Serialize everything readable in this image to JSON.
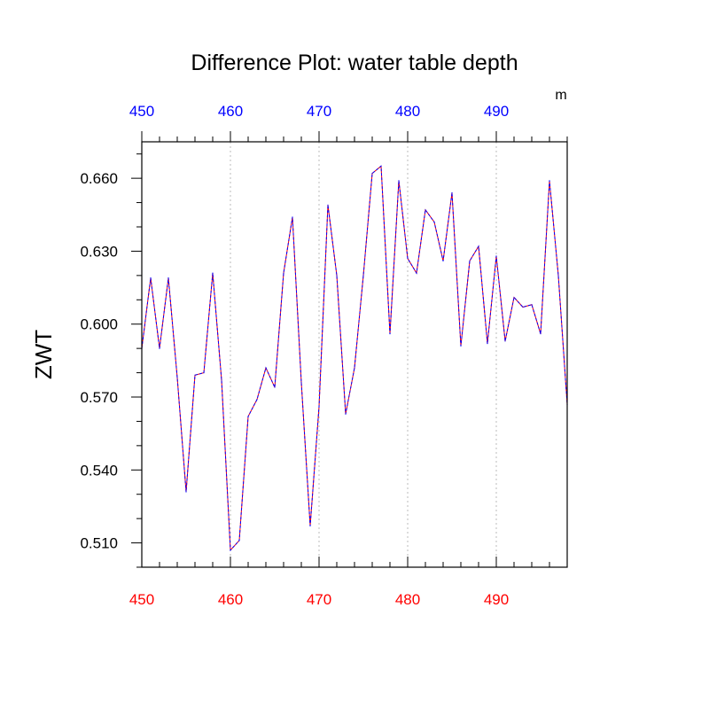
{
  "chart_data": {
    "type": "line",
    "title": "Difference Plot: water table depth",
    "ylabel": "ZWT",
    "top_axis_unit": "m",
    "xlim": [
      450,
      498
    ],
    "ylim": [
      0.5,
      0.675
    ],
    "x_ticks": [
      "450",
      "460",
      "470",
      "480",
      "490"
    ],
    "y_ticks": [
      "0.510",
      "0.540",
      "0.570",
      "0.600",
      "0.630",
      "0.660"
    ],
    "x_gridlines": true,
    "colors": {
      "bottom_axis_labels": "#ff0000",
      "top_axis_labels": "#0000ff",
      "series_solid": "#ff0000",
      "series_dashed": "#0000ff",
      "gridlines": "#bbbbbb"
    },
    "series": [
      {
        "x": [
          450,
          451,
          452,
          453,
          454,
          455,
          456,
          457,
          458,
          459,
          460,
          461,
          462,
          463,
          464,
          465,
          466,
          467,
          468,
          469,
          470,
          471,
          472,
          473,
          474,
          475,
          476,
          477,
          478,
          479,
          480,
          481,
          482,
          483,
          484,
          485,
          486,
          487,
          488,
          489,
          490,
          491,
          492,
          493,
          494,
          495,
          496,
          497,
          498
        ],
        "values": [
          0.59,
          0.619,
          0.59,
          0.619,
          0.578,
          0.531,
          0.579,
          0.58,
          0.621,
          0.577,
          0.507,
          0.511,
          0.562,
          0.569,
          0.582,
          0.574,
          0.621,
          0.644,
          0.576,
          0.517,
          0.566,
          0.649,
          0.62,
          0.563,
          0.582,
          0.62,
          0.662,
          0.665,
          0.596,
          0.659,
          0.627,
          0.621,
          0.647,
          0.642,
          0.626,
          0.654,
          0.591,
          0.626,
          0.632,
          0.592,
          0.628,
          0.593,
          0.611,
          0.607,
          0.608,
          0.596,
          0.659,
          0.62,
          0.567
        ]
      }
    ]
  }
}
